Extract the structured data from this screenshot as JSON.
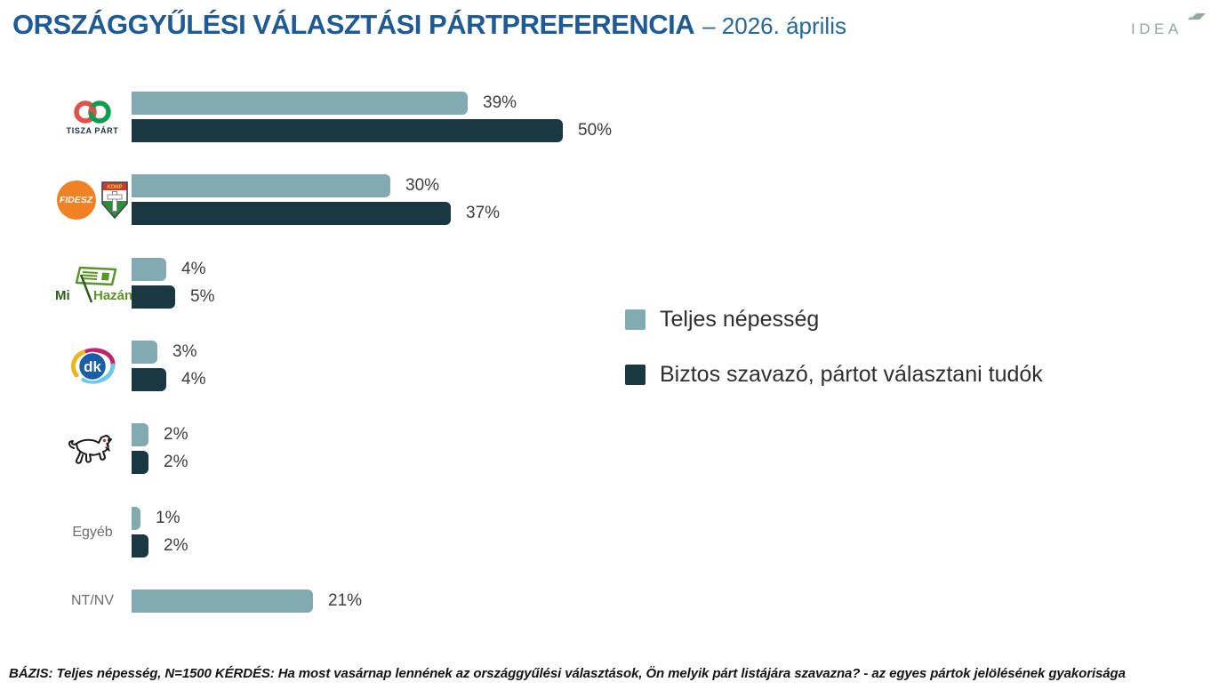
{
  "header": {
    "title": "ORSZÁGGYŰLÉSI VÁLASZTÁSI PÁRTPREFERENCIA",
    "subtitle": "– 2026. április",
    "brand": "IDEA"
  },
  "legend": [
    {
      "label": "Teljes népesség",
      "color": "#82aab1"
    },
    {
      "label": "Biztos szavazó, pártot választani tudók",
      "color": "#1a3842"
    }
  ],
  "chart_data": {
    "type": "bar",
    "orientation": "horizontal",
    "unit": "%",
    "title": "Országgyűlési választási pártpreferencia – 2026. április",
    "categories": [
      "Tisza Párt",
      "Fidesz-KDNP",
      "Mi Hazánk",
      "DK",
      "MKKP",
      "Egyéb",
      "NT/NV"
    ],
    "series": [
      {
        "name": "Teljes népesség",
        "color": "#82aab1",
        "values": [
          39,
          30,
          4,
          3,
          2,
          1,
          21
        ]
      },
      {
        "name": "Biztos szavazó, pártot választani tudók",
        "color": "#1a3842",
        "values": [
          50,
          37,
          5,
          4,
          2,
          2,
          null
        ]
      }
    ],
    "xlim": [
      0,
      55
    ],
    "value_labels": true,
    "rows": [
      {
        "id": "tisza",
        "name": "Tisza Párt",
        "logo": "tisza",
        "logo_text": "TISZA PÁRT"
      },
      {
        "id": "fidesz",
        "name": "Fidesz-KDNP",
        "logo": "fidesz_kdnp",
        "logo_text": "FIDESZ",
        "logo_text2": "KDNP"
      },
      {
        "id": "mihazank",
        "name": "Mi Hazánk",
        "logo": "mihazank",
        "logo_text": "Mi Hazánk"
      },
      {
        "id": "dk",
        "name": "DK",
        "logo": "dk",
        "logo_text": "dk"
      },
      {
        "id": "mkkp",
        "name": "MKKP",
        "logo": "mkkp"
      },
      {
        "id": "egyeb",
        "name": "Egyéb",
        "label": "Egyéb"
      },
      {
        "id": "ntnv",
        "name": "NT/NV",
        "label": "NT/NV"
      }
    ]
  },
  "footer": "BÁZIS: Teljes népesség, N=1500  KÉRDÉS:  Ha most vasárnap lennének az országgyűlési választások, Ön melyik párt listájára szavazna? - az egyes pártok jelölésének gyakorisága"
}
